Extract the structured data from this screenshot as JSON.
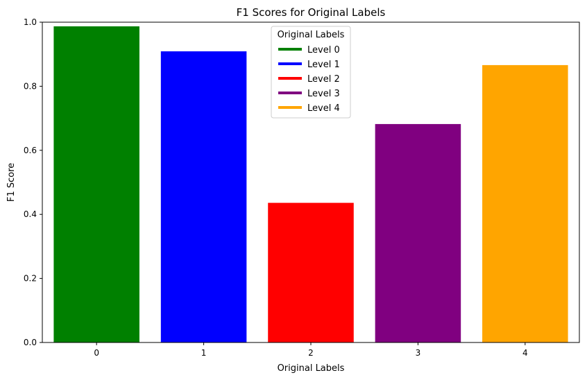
{
  "chart_data": {
    "type": "bar",
    "title": "F1 Scores for Original Labels",
    "xlabel": "Original Labels",
    "ylabel": "F1 Score",
    "categories": [
      "0",
      "1",
      "2",
      "3",
      "4"
    ],
    "values": [
      0.987,
      0.909,
      0.436,
      0.682,
      0.866
    ],
    "colors": [
      "#008000",
      "#0000ff",
      "#ff0000",
      "#800080",
      "#ffa500"
    ],
    "ylim": [
      0,
      1.0
    ],
    "yticks": [
      0.0,
      0.2,
      0.4,
      0.6,
      0.8,
      1.0
    ],
    "ytick_labels": [
      "0.0",
      "0.2",
      "0.4",
      "0.6",
      "0.8",
      "1.0"
    ],
    "grid": false,
    "legend": {
      "title": "Original Labels",
      "placement": "top-center",
      "entries": [
        {
          "label": "Level 0",
          "color": "#008000"
        },
        {
          "label": "Level 1",
          "color": "#0000ff"
        },
        {
          "label": "Level 2",
          "color": "#ff0000"
        },
        {
          "label": "Level 3",
          "color": "#800080"
        },
        {
          "label": "Level 4",
          "color": "#ffa500"
        }
      ]
    }
  }
}
